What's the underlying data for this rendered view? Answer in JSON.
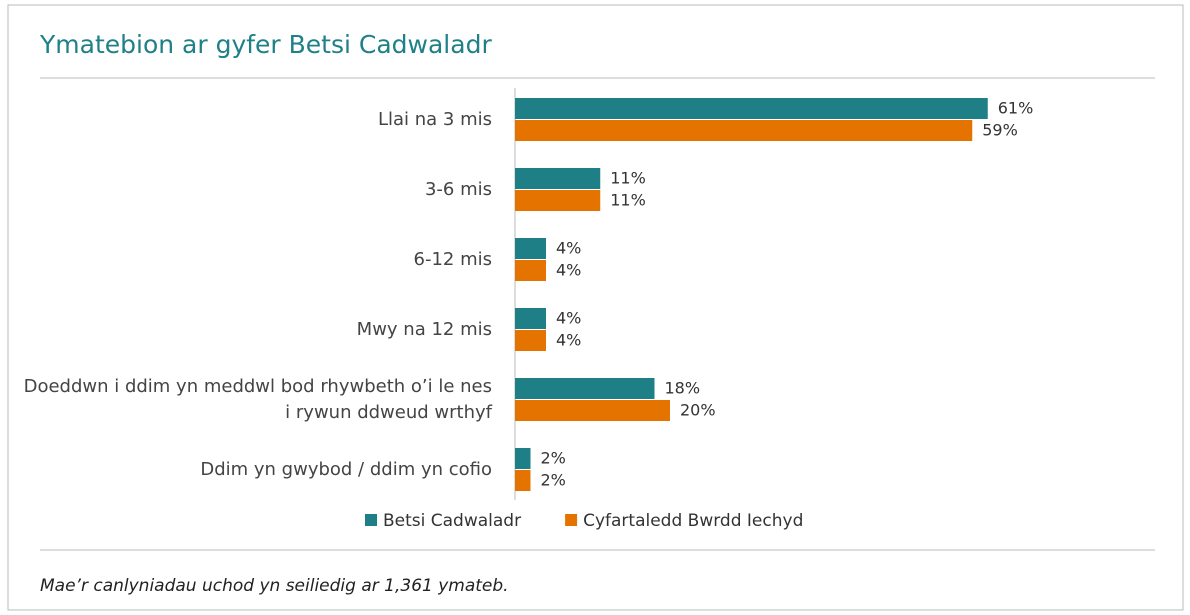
{
  "chart_data": {
    "type": "hbar",
    "title": "Ymatebion ar gyfer Betsi Cadwaladr",
    "categories": [
      "Llai na 3 mis",
      "3-6 mis",
      "6-12 mis",
      "Mwy na 12 mis",
      "Doeddwn i ddim yn meddwl bod rhywbeth o’i le nes i rywun ddweud wrthyf",
      "Ddim yn gwybod / ddim yn cofio"
    ],
    "series": [
      {
        "name": "Betsi Cadwaladr",
        "color": "#1f7f86",
        "values": [
          61,
          11,
          4,
          4,
          18,
          2
        ],
        "value_labels": [
          "61%",
          "11%",
          "4%",
          "4%",
          "18%",
          "2%"
        ]
      },
      {
        "name": "Cyfartaledd Bwrdd Iechyd",
        "color": "#e57300",
        "values": [
          59,
          11,
          4,
          4,
          20,
          2
        ],
        "value_labels": [
          "59%",
          "11%",
          "4%",
          "4%",
          "20%",
          "2%"
        ]
      }
    ],
    "xlim": [
      0,
      80
    ],
    "footnote": "Mae’r canlyniadau uchod yn seiliedig ar 1,361 ymateb."
  }
}
